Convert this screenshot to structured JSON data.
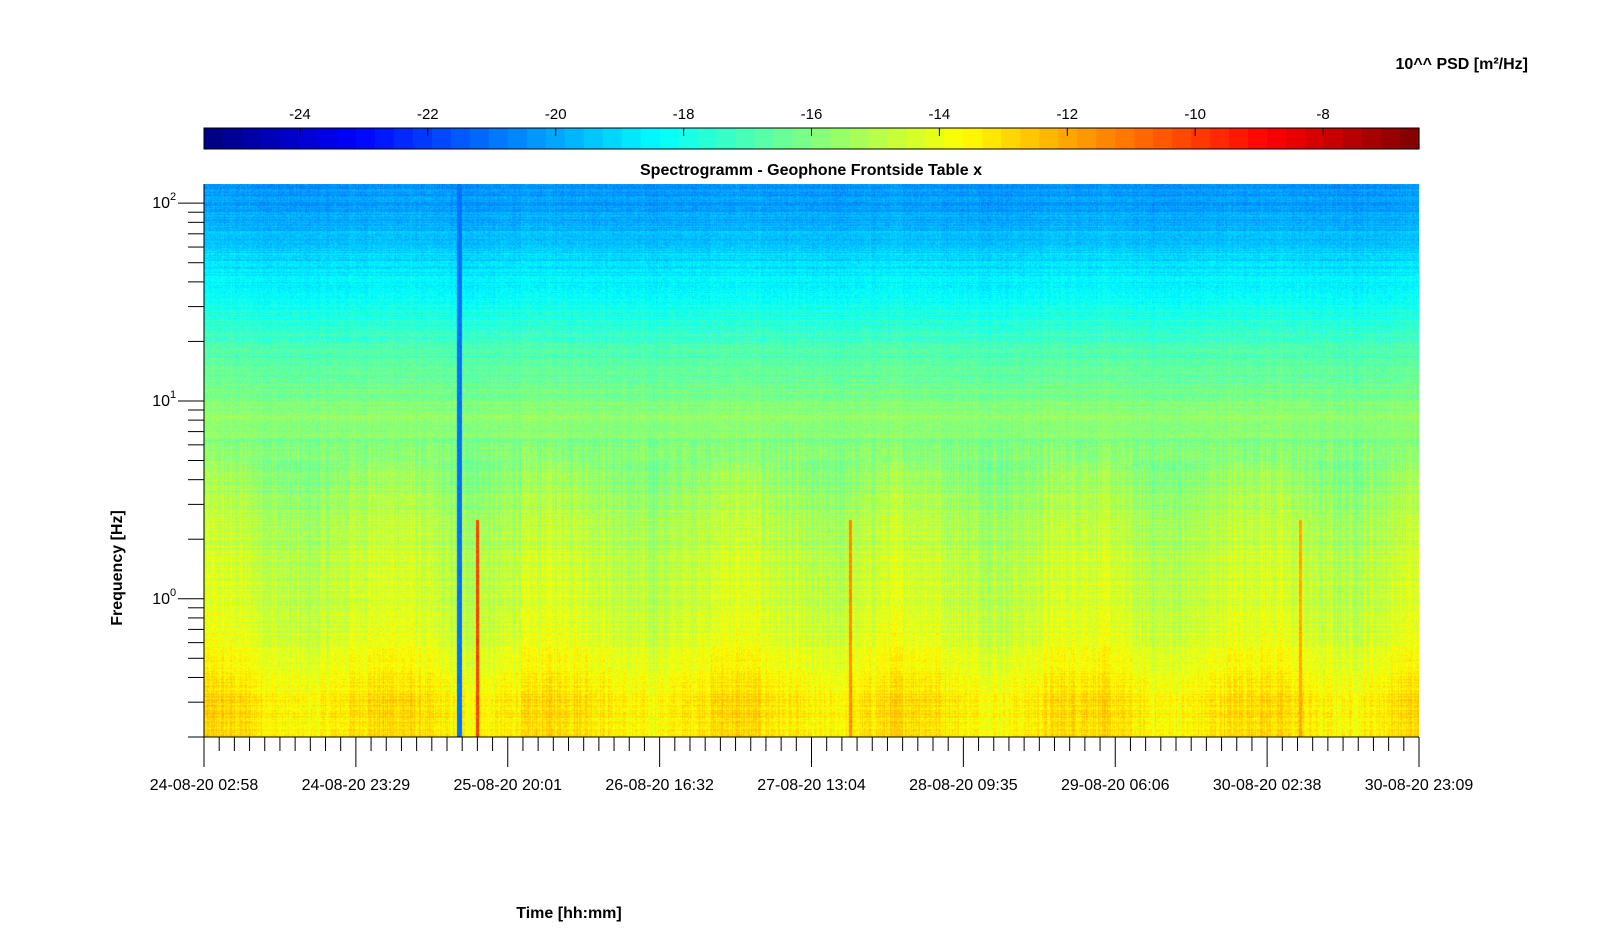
{
  "chart_data": {
    "type": "heatmap",
    "title": "Spectrogramm - Geophone Frontside Table x",
    "xlabel": "Time [hh:mm]",
    "ylabel": "Frequency [Hz]",
    "colorbar": {
      "label": "10^^ PSD [m²/Hz]",
      "range": [
        -25.5,
        -6.5
      ],
      "tick_values": [
        -24,
        -22,
        -20,
        -18,
        -16,
        -14,
        -12,
        -10,
        -8
      ],
      "tick_labels": [
        "-24",
        "-22",
        "-20",
        "-18",
        "-16",
        "-14",
        "-12",
        "-10",
        "-8"
      ],
      "colormap": "jet",
      "placement": "top"
    },
    "x_axis": {
      "tick_labels": [
        "24-08-20 02:58",
        "24-08-20 23:29",
        "25-08-20 20:01",
        "26-08-20 16:32",
        "27-08-20 13:04",
        "28-08-20 09:35",
        "29-08-20 06:06",
        "30-08-20 02:38",
        "30-08-20 23:09"
      ],
      "range": [
        "24-08-20 02:58",
        "30-08-20 23:09"
      ],
      "minor_ticks_between_major": 9
    },
    "y_axis": {
      "scale": "log",
      "range": [
        0.2,
        125
      ],
      "tick_values": [
        1,
        10,
        100
      ],
      "tick_labels": [
        "10",
        "10",
        "10"
      ],
      "tick_exponents": [
        "0",
        "1",
        "2"
      ]
    },
    "spectral_profile": {
      "description_free": true,
      "log10_frequency": [
        -0.7,
        -0.5,
        -0.3,
        -0.1,
        0.1,
        0.4,
        0.6,
        0.8,
        0.95,
        1.15,
        1.3,
        1.45,
        1.6,
        1.75,
        1.9,
        2.1
      ],
      "log10_psd": [
        -13.2,
        -13.2,
        -14.0,
        -14.4,
        -14.7,
        -15.0,
        -15.6,
        -15.9,
        -15.8,
        -16.6,
        -17.1,
        -17.9,
        -18.6,
        -19.2,
        -19.8,
        -20.4
      ]
    },
    "events": [
      {
        "time_fraction": 0.21,
        "kind": "data-gap",
        "log10_psd": -21.0
      },
      {
        "time_fraction": 0.225,
        "kind": "broadband-spike",
        "log10_psd": -10.0
      },
      {
        "time_fraction": 0.532,
        "kind": "broadband-spike",
        "log10_psd": -11.5
      },
      {
        "time_fraction": 0.902,
        "kind": "broadband-spike",
        "log10_psd": -12.0
      }
    ],
    "grid": false,
    "legend": "none"
  }
}
